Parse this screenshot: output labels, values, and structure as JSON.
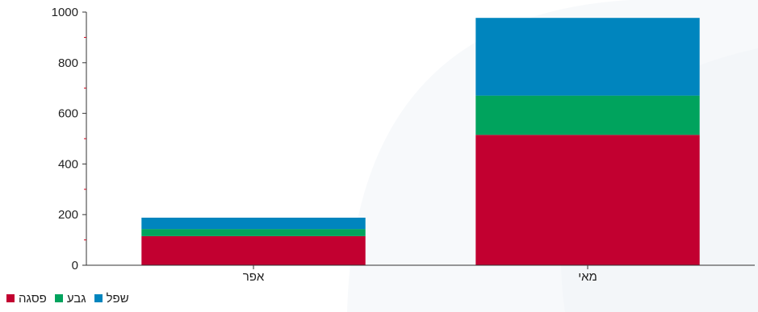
{
  "chart_data": {
    "type": "bar",
    "stacked": true,
    "categories": [
      "אפר",
      "מאי"
    ],
    "series": [
      {
        "name": "פסגה",
        "color": "#c20030",
        "values": [
          115,
          515
        ]
      },
      {
        "name": "גבע",
        "color": "#00a35d",
        "values": [
          28,
          155
        ]
      },
      {
        "name": "שפל",
        "color": "#0085be",
        "values": [
          45,
          307
        ]
      }
    ],
    "yticks": [
      0,
      200,
      400,
      600,
      800,
      1000
    ],
    "ylim": [
      0,
      1000
    ],
    "grid": false,
    "legend_position": "bottom-left"
  }
}
